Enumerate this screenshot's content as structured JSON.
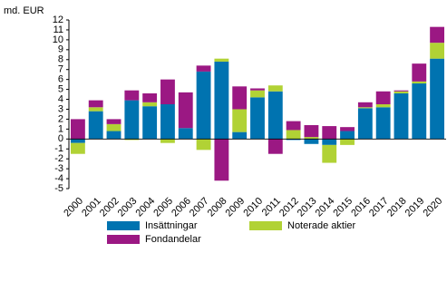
{
  "chart_data": {
    "type": "stacked_bar",
    "y_label": "md. EUR",
    "categories": [
      "2000",
      "2001",
      "2002",
      "2003",
      "2004",
      "2005",
      "2006",
      "2007",
      "2008",
      "2009",
      "2010",
      "2011",
      "2012",
      "2013",
      "2014",
      "2015",
      "2016",
      "2017",
      "2018",
      "2019",
      "2020"
    ],
    "series": [
      {
        "name": "Insättningar",
        "color": "#0073b0",
        "values": [
          -0.4,
          2.8,
          0.8,
          3.9,
          3.3,
          3.5,
          1.1,
          6.8,
          7.8,
          0.7,
          4.2,
          4.8,
          -0.1,
          -0.5,
          -0.6,
          0.8,
          3.1,
          3.2,
          4.6,
          5.6,
          8.1
        ]
      },
      {
        "name": "Noterade aktier",
        "color": "#b1d235",
        "values": [
          -1.1,
          0.4,
          0.7,
          -0.1,
          0.4,
          -0.4,
          0,
          -1.1,
          0.3,
          2.3,
          0.7,
          0.6,
          0.9,
          0.2,
          -1.8,
          -0.6,
          0.1,
          0.3,
          0.2,
          0.2,
          1.6
        ]
      },
      {
        "name": "Fondandelar",
        "color": "#9b1883",
        "values": [
          2.0,
          0.7,
          0.5,
          1.0,
          0.9,
          2.5,
          3.6,
          0.6,
          -4.2,
          2.3,
          0.2,
          -1.5,
          0.9,
          1.2,
          1.3,
          0.4,
          0.5,
          1.3,
          0.1,
          1.8,
          1.6
        ]
      }
    ],
    "ylim": [
      -5,
      12
    ],
    "yticks": [
      -5,
      -4,
      -3,
      -2,
      -1,
      0,
      1,
      2,
      3,
      4,
      5,
      6,
      7,
      8,
      9,
      10,
      11,
      12
    ],
    "grid": false
  }
}
